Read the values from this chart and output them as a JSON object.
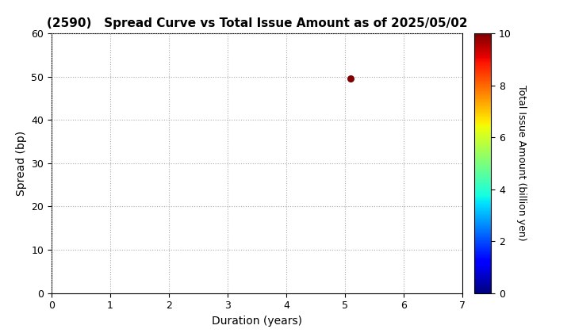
{
  "title": "(2590)   Spread Curve vs Total Issue Amount as of 2025/05/02",
  "xlabel": "Duration (years)",
  "ylabel": "Spread (bp)",
  "colorbar_label": "Total Issue Amount (billion yen)",
  "xlim": [
    0,
    7
  ],
  "ylim": [
    0,
    60
  ],
  "xticks": [
    0,
    1,
    2,
    3,
    4,
    5,
    6,
    7
  ],
  "yticks": [
    0,
    10,
    20,
    30,
    40,
    50,
    60
  ],
  "colorbar_ticks": [
    0,
    2,
    4,
    6,
    8,
    10
  ],
  "colorbar_range": [
    0,
    10
  ],
  "data_points": [
    {
      "duration": 5.1,
      "spread": 49.5,
      "amount": 10.0
    }
  ],
  "grid_color": "#aaaaaa",
  "grid_linestyle": "dotted",
  "background_color": "#ffffff",
  "colormap": "jet",
  "title_fontsize": 11,
  "axis_label_fontsize": 10,
  "tick_fontsize": 9,
  "colorbar_label_fontsize": 9,
  "marker_size": 30
}
